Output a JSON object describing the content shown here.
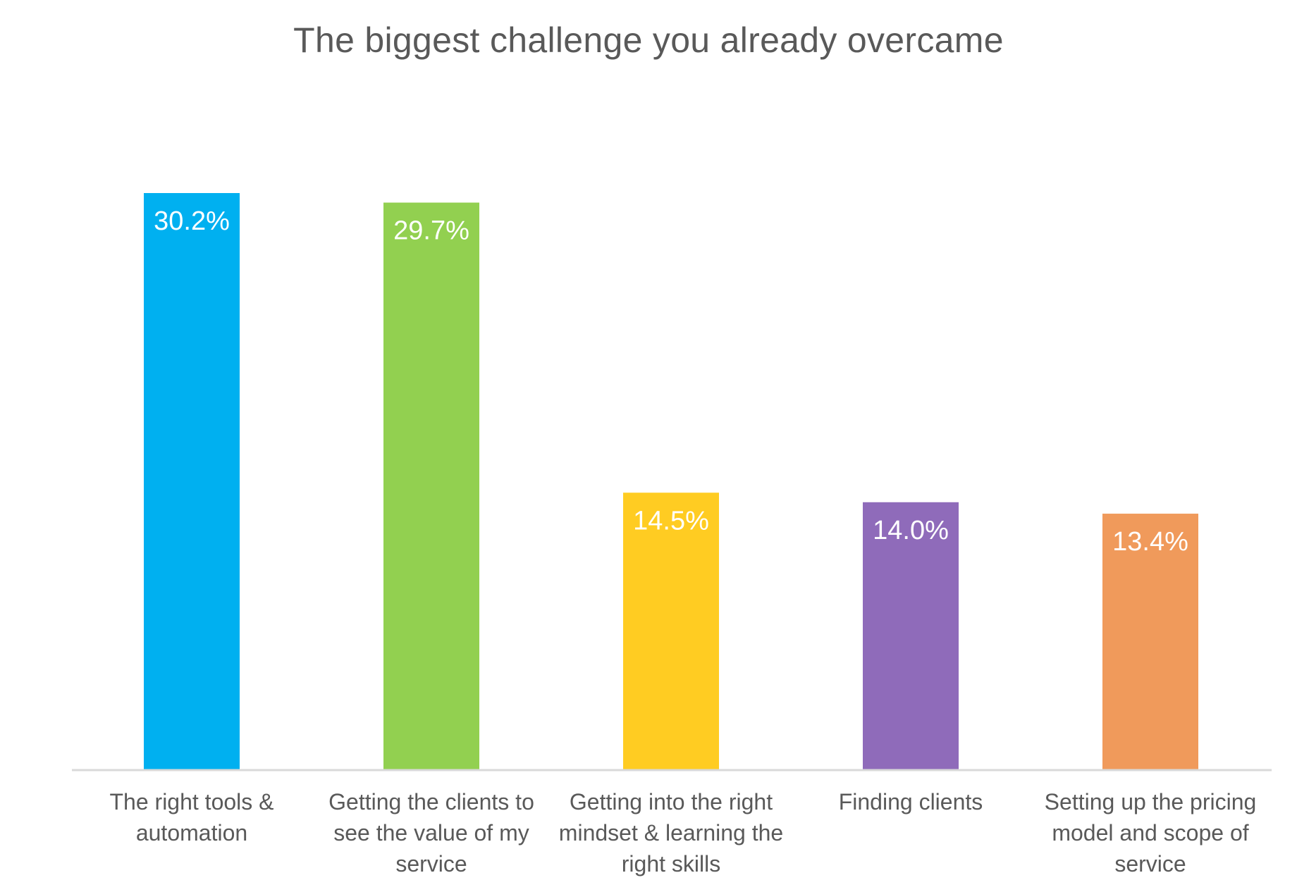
{
  "chart_data": {
    "type": "bar",
    "title": "The biggest challenge you already overcame",
    "xlabel": "",
    "ylabel": "",
    "categories": [
      "The right tools & automation",
      "Getting the clients to see the value of my service",
      "Getting into the right mindset & learning the right skills",
      "Finding clients",
      "Setting up the pricing model and scope of service"
    ],
    "values": [
      30.2,
      29.7,
      14.5,
      14.0,
      13.4
    ],
    "data_labels": [
      "30.2%",
      "29.7%",
      "14.5%",
      "14.0%",
      "13.4%"
    ],
    "colors": [
      "#00B0F0",
      "#92D050",
      "#FFCC22",
      "#8F6BBA",
      "#F09A5B"
    ],
    "ylim": [
      0,
      30.2
    ],
    "grid": false,
    "legend": "none"
  }
}
